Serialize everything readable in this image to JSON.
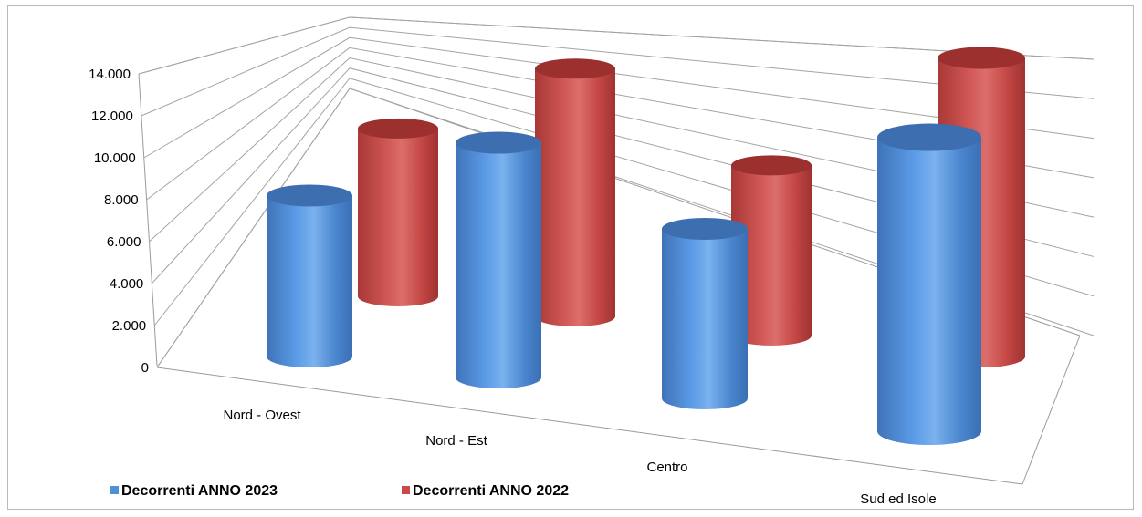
{
  "chart_data": {
    "type": "bar",
    "style": "3d-cylinder",
    "categories": [
      "Nord - Ovest",
      "Nord - Est",
      "Centro",
      "Sud ed Isole"
    ],
    "series": [
      {
        "name": "Decorrenti ANNO 2023",
        "color": "#4f8fd9",
        "values": [
          6900,
          9800,
          6900,
          11500
        ]
      },
      {
        "name": "Decorrenti ANNO 2022",
        "color": "#c94a48",
        "values": [
          7800,
          11200,
          7500,
          12800
        ]
      }
    ],
    "yticks": [
      "0",
      "2.000",
      "4.000",
      "6.000",
      "8.000",
      "10.000",
      "12.000",
      "14.000"
    ],
    "ylim": [
      0,
      14000
    ],
    "grid": true,
    "legend": "bottom-left"
  }
}
